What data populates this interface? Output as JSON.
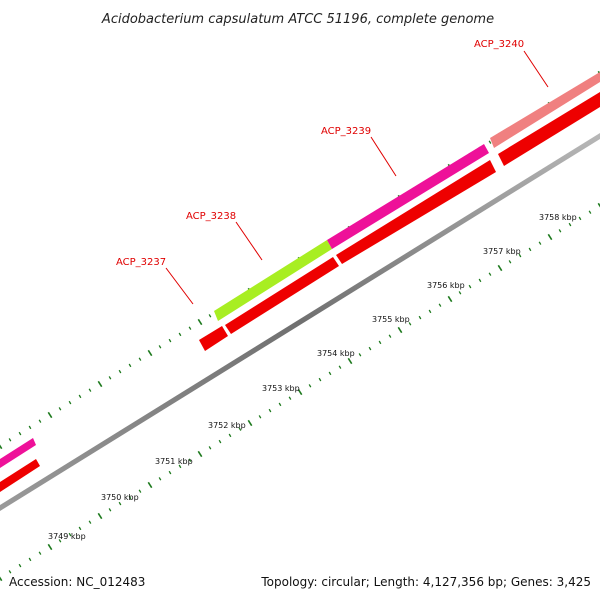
{
  "title": "Acidobacterium capsulatum ATCC 51196, complete genome",
  "footer": {
    "accession": "Accession: NC_012483",
    "summary": "Topology: circular; Length: 4,127,356 bp; Genes: 3,425"
  },
  "colors": {
    "backbone": "#8a8a8a",
    "reverse_gene": "#ee0000",
    "ticks": "#1e7a1e",
    "label": "#e00000",
    "gene_magenta": "#ee1199",
    "gene_lime": "#a8ee22",
    "gene_pink": "#f08080"
  },
  "genes": [
    {
      "name": "ACP_3237",
      "labeled": true
    },
    {
      "name": "ACP_3238",
      "labeled": true
    },
    {
      "name": "ACP_3239",
      "labeled": true
    },
    {
      "name": "ACP_3240",
      "labeled": true
    }
  ],
  "scale_labels": [
    "3749 kbp",
    "3750 kbp",
    "3751 kbp",
    "3752 kbp",
    "3753 kbp",
    "3754 kbp",
    "3755 kbp",
    "3756 kbp",
    "3757 kbp",
    "3758 kbp"
  ]
}
